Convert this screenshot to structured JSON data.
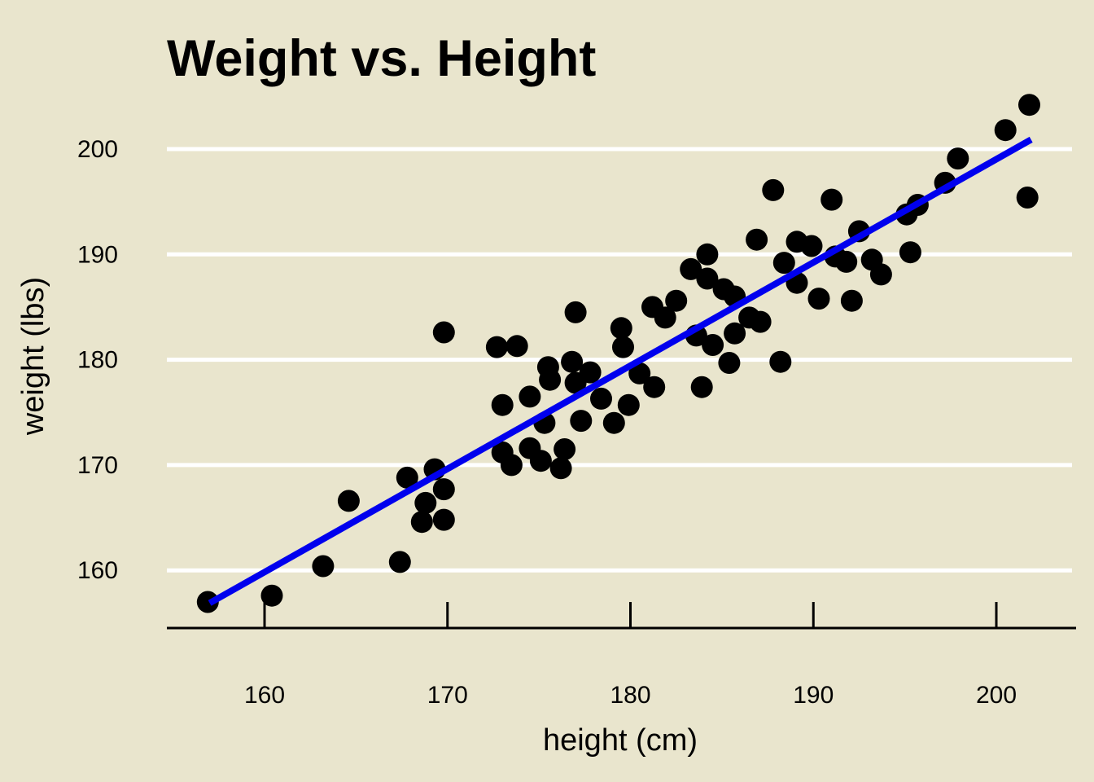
{
  "chart_data": {
    "type": "scatter",
    "title": "Weight vs. Height",
    "xlabel": "height (cm)",
    "ylabel": "weight (lbs)",
    "x_ticks": [
      160,
      170,
      180,
      190,
      200
    ],
    "y_ticks": [
      200,
      190,
      180,
      170,
      160
    ],
    "xlim": [
      154.7,
      204.2
    ],
    "ylim": [
      154.5,
      205.5
    ],
    "grid": "horizontal-white",
    "legend": "none",
    "points": [
      [
        156.9,
        157.0
      ],
      [
        160.4,
        157.6
      ],
      [
        163.2,
        160.4
      ],
      [
        164.6,
        166.6
      ],
      [
        167.4,
        160.8
      ],
      [
        167.8,
        168.8
      ],
      [
        169.3,
        169.6
      ],
      [
        169.8,
        167.7
      ],
      [
        168.8,
        166.4
      ],
      [
        168.6,
        164.6
      ],
      [
        169.8,
        164.8
      ],
      [
        169.8,
        182.6
      ],
      [
        173.0,
        171.2
      ],
      [
        173.5,
        170.0
      ],
      [
        174.5,
        171.6
      ],
      [
        175.1,
        170.4
      ],
      [
        176.4,
        171.5
      ],
      [
        176.2,
        169.7
      ],
      [
        172.7,
        181.2
      ],
      [
        173.8,
        181.3
      ],
      [
        175.5,
        179.3
      ],
      [
        175.6,
        178.1
      ],
      [
        176.8,
        179.8
      ],
      [
        177.8,
        178.8
      ],
      [
        177.0,
        177.8
      ],
      [
        174.5,
        176.5
      ],
      [
        173.0,
        175.7
      ],
      [
        175.3,
        174.0
      ],
      [
        177.3,
        174.2
      ],
      [
        179.1,
        174.0
      ],
      [
        179.9,
        175.7
      ],
      [
        178.4,
        176.3
      ],
      [
        180.5,
        178.7
      ],
      [
        181.3,
        177.4
      ],
      [
        177.0,
        184.5
      ],
      [
        179.5,
        183.0
      ],
      [
        179.6,
        181.2
      ],
      [
        181.2,
        185.0
      ],
      [
        181.9,
        184.0
      ],
      [
        182.5,
        185.6
      ],
      [
        183.3,
        188.6
      ],
      [
        184.2,
        190.0
      ],
      [
        184.2,
        187.7
      ],
      [
        185.1,
        186.7
      ],
      [
        185.7,
        186.0
      ],
      [
        186.5,
        184.0
      ],
      [
        187.1,
        183.6
      ],
      [
        185.7,
        182.5
      ],
      [
        183.6,
        182.3
      ],
      [
        184.5,
        181.4
      ],
      [
        185.4,
        179.7
      ],
      [
        188.2,
        179.8
      ],
      [
        183.9,
        177.4
      ],
      [
        186.9,
        191.4
      ],
      [
        189.1,
        191.2
      ],
      [
        189.9,
        190.8
      ],
      [
        188.4,
        189.2
      ],
      [
        189.1,
        187.3
      ],
      [
        190.3,
        185.8
      ],
      [
        192.1,
        185.6
      ],
      [
        191.2,
        189.8
      ],
      [
        191.8,
        189.3
      ],
      [
        193.2,
        189.5
      ],
      [
        193.7,
        188.1
      ],
      [
        191.0,
        195.2
      ],
      [
        192.5,
        192.2
      ],
      [
        195.1,
        193.8
      ],
      [
        195.7,
        194.7
      ],
      [
        195.3,
        190.2
      ],
      [
        197.9,
        199.1
      ],
      [
        197.2,
        196.8
      ],
      [
        200.5,
        201.8
      ],
      [
        201.8,
        204.2
      ],
      [
        201.7,
        195.4
      ],
      [
        187.8,
        196.1
      ]
    ],
    "trend_line": {
      "x_start": 157.0,
      "y_start": 156.9,
      "x_end": 201.9,
      "y_end": 200.9
    },
    "colors": {
      "background": "#e9e5cd",
      "point_color": "#000000",
      "trend_color": "#0000ee",
      "gridline_color": "#ffffff",
      "axis_color": "#000000",
      "text_color": "#000000"
    }
  }
}
